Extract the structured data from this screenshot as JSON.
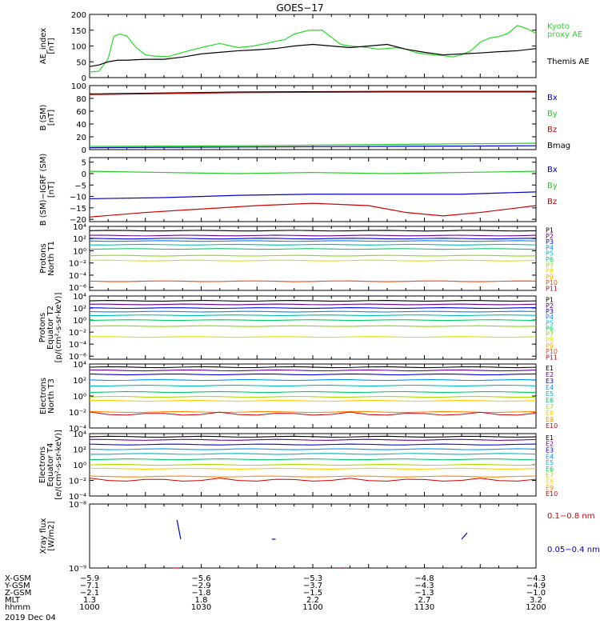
{
  "title": "GOES−17",
  "date": "2019 Dec 04",
  "orbit": {
    "labels": [
      "X-GSM",
      "Y-GSM",
      "Z-GSM",
      "MLT",
      "hhmm"
    ],
    "columns": [
      [
        "−5.9",
        "−7.1",
        "−2.1",
        "1.3",
        "1000"
      ],
      [
        "−5.6",
        "−2.9",
        "−1.8",
        "1.8",
        "1030"
      ],
      [
        "−5.3",
        "−3.7",
        "−1.5",
        "2.2",
        "1100"
      ],
      [
        "−4.8",
        "−4.3",
        "−1.3",
        "2.7",
        "1130"
      ],
      [
        "−4.3",
        "−4.9",
        "−1.0",
        "3.2",
        "1200"
      ]
    ]
  },
  "chart_data": [
    {
      "id": "ae",
      "type": "line",
      "ylabel": [
        "AE_index",
        "[nT]"
      ],
      "ylim": [
        0,
        200
      ],
      "yticks": [
        "0",
        "50",
        "100",
        "150",
        "200"
      ],
      "legend": [
        {
          "text": "Kyoto",
          "color": "#22dd22"
        },
        {
          "text": "proxy AE",
          "color": "#22dd22"
        },
        {
          "text": "Themis AE",
          "color": "#000000"
        }
      ],
      "series": [
        {
          "name": "Kyoto proxy AE",
          "color": "#22dd22",
          "x": [
            0,
            5,
            10,
            13,
            16,
            20,
            25,
            30,
            35,
            42,
            50,
            60,
            70,
            80,
            88,
            95,
            100,
            105,
            110,
            118,
            125,
            130,
            135,
            140,
            145,
            150,
            155,
            160,
            165,
            170,
            175,
            180,
            185,
            190,
            195,
            200,
            205,
            210,
            215,
            220,
            225,
            230,
            235,
            240
          ],
          "y": [
            18,
            20,
            60,
            130,
            138,
            132,
            95,
            72,
            68,
            66,
            80,
            95,
            108,
            95,
            100,
            108,
            115,
            120,
            138,
            150,
            150,
            128,
            105,
            100,
            98,
            95,
            90,
            92,
            95,
            90,
            80,
            75,
            72,
            70,
            65,
            72,
            85,
            112,
            125,
            130,
            140,
            165,
            155,
            140
          ]
        },
        {
          "name": "Themis AE",
          "color": "#000000",
          "x": [
            0,
            5,
            10,
            15,
            20,
            30,
            40,
            50,
            60,
            70,
            80,
            90,
            100,
            110,
            120,
            130,
            140,
            150,
            160,
            170,
            180,
            190,
            200,
            210,
            220,
            230,
            240
          ],
          "y": [
            35,
            40,
            50,
            55,
            55,
            58,
            58,
            65,
            75,
            80,
            85,
            88,
            92,
            100,
            105,
            100,
            95,
            100,
            105,
            90,
            80,
            72,
            75,
            78,
            82,
            85,
            92
          ]
        }
      ]
    },
    {
      "id": "bsm",
      "type": "line",
      "ylabel": [
        "B (SM)",
        "[nT]"
      ],
      "ylim": [
        0,
        100
      ],
      "yticks": [
        "0",
        "20",
        "40",
        "60",
        "80",
        "100"
      ],
      "legend": [
        {
          "text": "Bx",
          "color": "#0000cc"
        },
        {
          "text": "By",
          "color": "#22cc22"
        },
        {
          "text": "Bz",
          "color": "#cc0000"
        },
        {
          "text": "Bmag",
          "color": "#000000"
        }
      ],
      "series": [
        {
          "name": "Bmag",
          "color": "#000000",
          "x": [
            0,
            80,
            160,
            240
          ],
          "y": [
            87,
            90,
            91,
            91
          ]
        },
        {
          "name": "Bz",
          "color": "#cc0000",
          "x": [
            0,
            80,
            160,
            240
          ],
          "y": [
            86,
            89,
            90,
            90
          ]
        },
        {
          "name": "By",
          "color": "#22cc22",
          "x": [
            0,
            80,
            160,
            240
          ],
          "y": [
            5,
            6,
            8,
            10
          ]
        },
        {
          "name": "Bx",
          "color": "#0000cc",
          "x": [
            0,
            80,
            160,
            240
          ],
          "y": [
            3,
            4,
            5,
            6
          ]
        }
      ]
    },
    {
      "id": "bigrf",
      "type": "line",
      "ylabel": [
        "B (SM)−IGRF (SM)",
        "[nT]"
      ],
      "ylim": [
        -21,
        7
      ],
      "yticks": [
        "5",
        "0",
        "−5",
        "−10",
        "−15",
        "−20"
      ],
      "yticks_vals": [
        5,
        0,
        -5,
        -10,
        -15,
        -20
      ],
      "legend": [
        {
          "text": "Bx",
          "color": "#0000cc"
        },
        {
          "text": "By",
          "color": "#22cc22"
        },
        {
          "text": "Bz",
          "color": "#cc0000"
        }
      ],
      "series": [
        {
          "name": "By",
          "color": "#22cc22",
          "x": [
            0,
            40,
            80,
            120,
            160,
            200,
            240
          ],
          "y": [
            1,
            0.5,
            0,
            0.5,
            0,
            0.5,
            1
          ]
        },
        {
          "name": "Bx",
          "color": "#0000cc",
          "x": [
            0,
            40,
            80,
            120,
            160,
            200,
            240
          ],
          "y": [
            -11,
            -10.5,
            -9.5,
            -9,
            -9,
            -9,
            -8
          ]
        },
        {
          "name": "Bz",
          "color": "#cc0000",
          "x": [
            0,
            30,
            60,
            90,
            120,
            150,
            170,
            190,
            210,
            240
          ],
          "y": [
            -19,
            -17,
            -15.5,
            -14,
            -13,
            -14,
            -17,
            -18.5,
            -17,
            -14
          ]
        }
      ]
    },
    {
      "id": "p1",
      "type": "line",
      "ylabel": [
        "Protons",
        "North T1"
      ],
      "ylim_log": [
        -6.5,
        4
      ],
      "yticks": [
        "10⁴",
        "10²",
        "10⁰",
        "10⁻²",
        "10⁻⁴",
        "10⁻⁶"
      ],
      "yticks_exp": [
        4,
        2,
        0,
        -2,
        -4,
        -6
      ],
      "legend": [
        "P1",
        "P2",
        "P3",
        "P4",
        "P5",
        "P6",
        "P7",
        "P8",
        "P9",
        "P10",
        "P11"
      ],
      "levels_log": [
        3.3,
        2.5,
        2.0,
        1.6,
        1.0,
        0.3,
        -0.8,
        -1.6,
        null,
        -5.0,
        null
      ]
    },
    {
      "id": "p2",
      "type": "line",
      "ylabel": [
        "Protons",
        "Equator T2",
        "[p/(cm²-s-sr-keV)]"
      ],
      "ylim_log": [
        -6.5,
        4
      ],
      "yticks": [
        "10⁴",
        "10²",
        "10⁰",
        "10⁻²",
        "10⁻⁴",
        "10⁻⁶"
      ],
      "yticks_exp": [
        4,
        2,
        0,
        -2,
        -4,
        -6
      ],
      "legend": [
        "P1",
        "P2",
        "P3",
        "P4",
        "P5",
        "P6",
        "P7",
        "P8",
        "P9",
        "P10",
        "P11"
      ],
      "levels_log": [
        3.2,
        2.6,
        2.0,
        1.4,
        0.8,
        0.0,
        -1.0,
        -2.8,
        null,
        null,
        null
      ]
    },
    {
      "id": "e3",
      "type": "line",
      "ylabel": [
        "Electrons",
        "North T3"
      ],
      "ylim_log": [
        -4,
        4
      ],
      "yticks": [
        "10⁴",
        "10²",
        "10⁰",
        "10⁻²",
        "10⁻⁴"
      ],
      "yticks_exp": [
        4,
        2,
        0,
        -2,
        -4
      ],
      "legend": [
        "E1",
        "E2",
        "E3",
        "E4",
        "E5",
        "E6",
        "E7",
        "E8",
        "E9",
        "E10"
      ],
      "levels_log": [
        3.6,
        3.2,
        2.7,
        2.0,
        1.3,
        0.5,
        -0.1,
        -0.6,
        -2.0,
        null
      ]
    },
    {
      "id": "e4",
      "type": "line",
      "ylabel": [
        "Electrons",
        "Equator T4",
        "[e/(cm²-s-sr-keV)]"
      ],
      "ylim_log": [
        -4,
        4
      ],
      "yticks": [
        "10⁴",
        "10²",
        "10⁰",
        "10⁻²",
        "10⁻⁴"
      ],
      "yticks_exp": [
        4,
        2,
        0,
        -2,
        -4
      ],
      "legend": [
        "E1",
        "E2",
        "E3",
        "E4",
        "E5",
        "E6",
        "E7",
        "E8",
        "E9",
        "E10"
      ],
      "levels_log": [
        3.6,
        3.2,
        2.6,
        2.0,
        1.4,
        0.7,
        0.0,
        -0.5,
        -1.5,
        null
      ]
    },
    {
      "id": "xray",
      "type": "line",
      "ylabel": [
        "Xray flux",
        "[W/m2]"
      ],
      "ylim_log": [
        -9,
        -8
      ],
      "yticks": [
        "10⁻⁸",
        "10⁻⁹"
      ],
      "yticks_exp": [
        -8,
        -9
      ],
      "legend": [
        {
          "text": "0.1−0.8 nm",
          "color": "#cc0000"
        },
        {
          "text": "0.05−0.4 nm",
          "color": "#0000cc"
        }
      ]
    }
  ],
  "band_colors": {
    "p": [
      "#000000",
      "#660099",
      "#0000dd",
      "#0088ff",
      "#00bbbb",
      "#00cc66",
      "#88dd00",
      "#dddd00",
      "#ffaa00",
      "#ff4400",
      "#cc0000"
    ],
    "e": [
      "#000000",
      "#660099",
      "#0000dd",
      "#0099ff",
      "#00bbbb",
      "#00cc66",
      "#aadd00",
      "#ffcc00",
      "#ff8800",
      "#cc0000"
    ]
  }
}
